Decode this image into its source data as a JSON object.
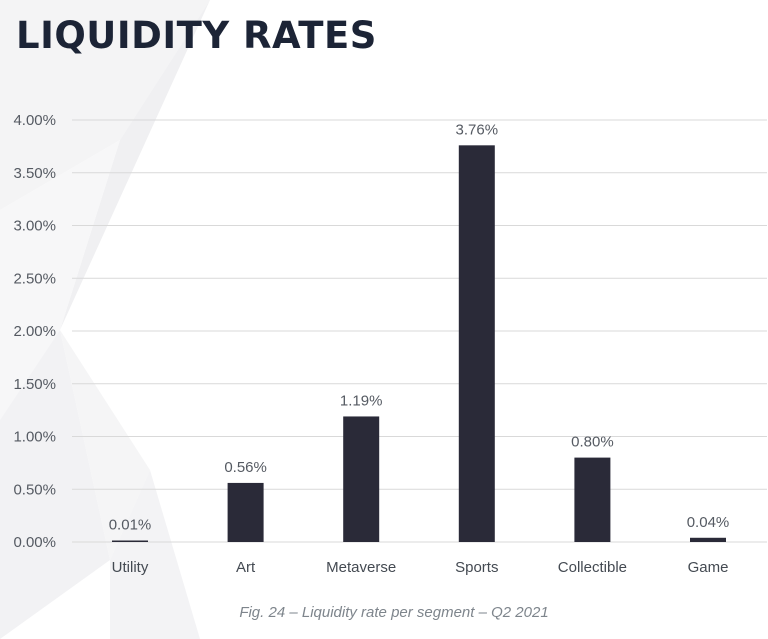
{
  "title": "LIQUIDITY RATES",
  "caption": "Fig. 24 – Liquidity rate per segment – Q2 2021",
  "colors": {
    "bar": "#2a2a38",
    "title": "#1c2436",
    "grid": "#d9d9d9"
  },
  "chart_data": {
    "type": "bar",
    "categories": [
      "Utility",
      "Art",
      "Metaverse",
      "Sports",
      "Collectible",
      "Game"
    ],
    "values": [
      0.01,
      0.56,
      1.19,
      3.76,
      0.8,
      0.04
    ],
    "data_labels": [
      "0.01%",
      "0.56%",
      "1.19%",
      "3.76%",
      "0.80%",
      "0.04%"
    ],
    "y_ticks": [
      0,
      0.5,
      1.0,
      1.5,
      2.0,
      2.5,
      3.0,
      3.5,
      4.0
    ],
    "y_tick_labels": [
      "0.00%",
      "0.50%",
      "1.00%",
      "1.50%",
      "2.00%",
      "2.50%",
      "3.00%",
      "3.50%",
      "4.00%"
    ],
    "ylim": [
      0,
      4.0
    ],
    "grid": true,
    "legend": "none"
  }
}
